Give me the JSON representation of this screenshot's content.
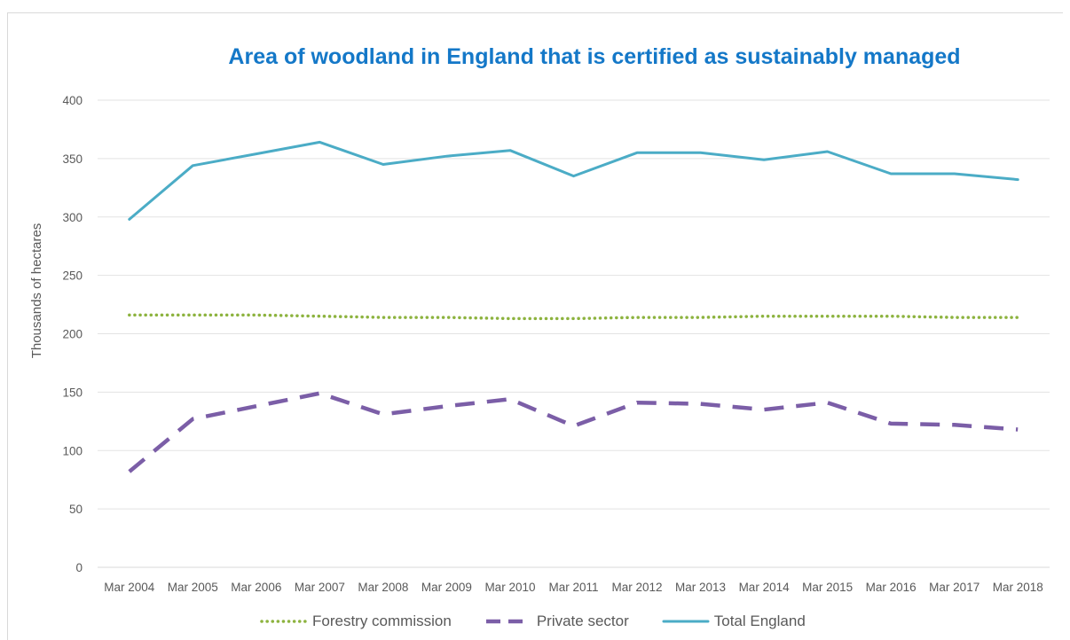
{
  "chart_data": {
    "type": "line",
    "title": "Area of woodland in England that is certified as sustainably managed",
    "xlabel": "",
    "ylabel": "Thousands of hectares",
    "ylim": [
      0,
      400
    ],
    "yticks": [
      0,
      50,
      100,
      150,
      200,
      250,
      300,
      350,
      400
    ],
    "grid": true,
    "legend_position": "bottom",
    "categories": [
      "Mar 2004",
      "Mar 2005",
      "Mar 2006",
      "Mar 2007",
      "Mar 2008",
      "Mar 2009",
      "Mar 2010",
      "Mar 2011",
      "Mar 2012",
      "Mar 2013",
      "Mar 2014",
      "Mar 2015",
      "Mar 2016",
      "Mar 2017",
      "Mar 2018"
    ],
    "series": [
      {
        "name": "Forestry commission",
        "style": "dotted",
        "color": "#8db33f",
        "values": [
          216,
          216,
          216,
          215,
          214,
          214,
          213,
          213,
          214,
          214,
          215,
          215,
          215,
          214,
          214
        ]
      },
      {
        "name": "Private sector",
        "style": "dashed",
        "color": "#7b5ea7",
        "values": [
          82,
          127,
          138,
          149,
          131,
          138,
          144,
          121,
          141,
          140,
          135,
          141,
          123,
          122,
          118
        ]
      },
      {
        "name": "Total England",
        "style": "solid",
        "color": "#4bacc6",
        "values": [
          298,
          344,
          354,
          364,
          345,
          352,
          357,
          335,
          355,
          355,
          349,
          356,
          337,
          337,
          332
        ]
      }
    ]
  }
}
